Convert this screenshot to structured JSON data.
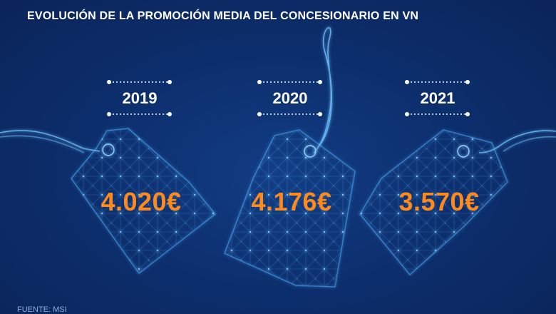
{
  "title": "EVOLUCIÓN DE LA PROMOCIÓN MEDIA DEL CONCESIONARIO EN VN",
  "source": "FUENTE: MSI",
  "colors": {
    "background": "#0d2f6e",
    "value_text": "#ff8a1c",
    "label_text": "#ffffff",
    "tag_glow": "#4fb3ff"
  },
  "chart_data": {
    "type": "table",
    "title": "EVOLUCIÓN DE LA PROMOCIÓN MEDIA DEL CONCESIONARIO EN VN",
    "categories": [
      "2019",
      "2020",
      "2021"
    ],
    "values": [
      4020,
      4176,
      3570
    ],
    "value_labels": [
      "4.020€",
      "4.176€",
      "3.570€"
    ],
    "unit": "€"
  }
}
